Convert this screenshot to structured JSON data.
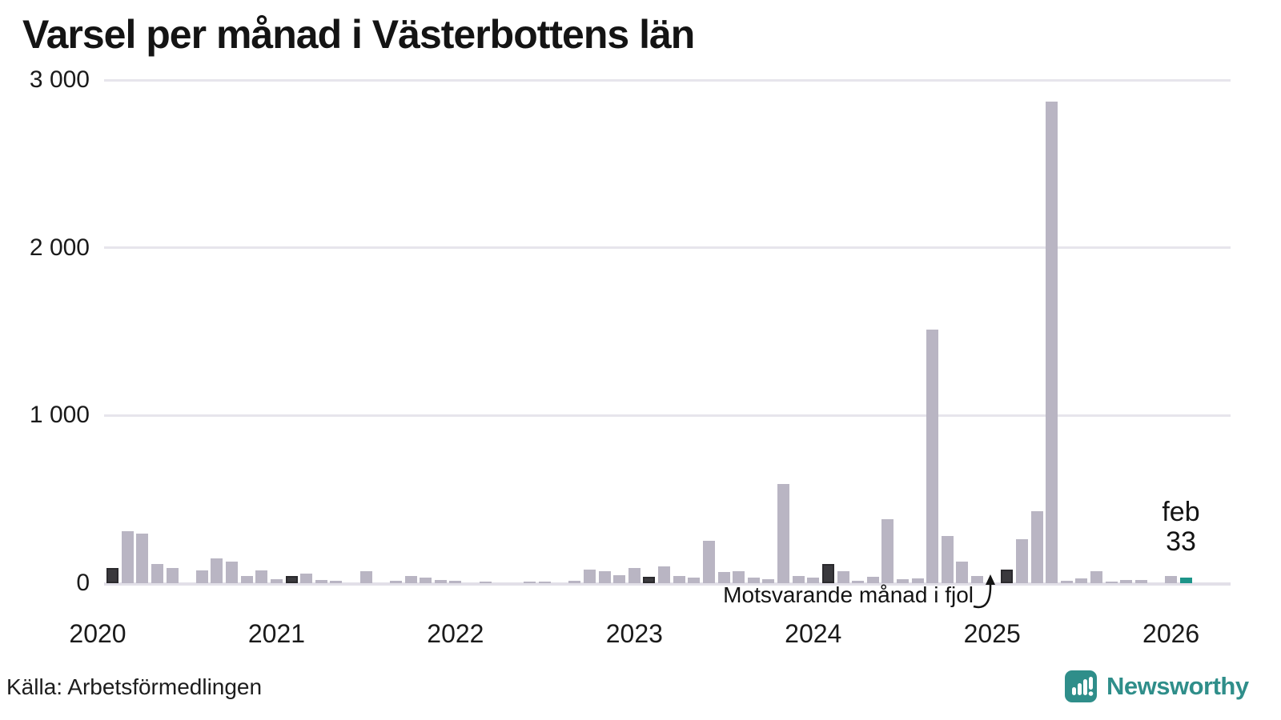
{
  "title": "Varsel per månad i Västerbottens län",
  "source": "Källa: Arbetsförmedlingen",
  "branding": {
    "name": "Newsworthy"
  },
  "annotation": {
    "compare_label": "Motsvarande månad i fjol"
  },
  "current_point": {
    "month_label": "feb",
    "value_label": "33"
  },
  "colors": {
    "bar": "#b9b5c3",
    "bar_compare": "#3a393d",
    "bar_current": "#1d9489",
    "brand_teal": "#2f8e8a",
    "grid": "#e7e5ec",
    "text": "#141414"
  },
  "chart_data": {
    "type": "bar",
    "title": "Varsel per månad i Västerbottens län",
    "xlabel": "",
    "ylabel": "",
    "ylim": [
      0,
      3000
    ],
    "grid": "horizontal",
    "y_ticks": [
      {
        "label": "0",
        "value": 0
      },
      {
        "label": "1 000",
        "value": 1000
      },
      {
        "label": "2 000",
        "value": 2000
      },
      {
        "label": "3 000",
        "value": 3000
      }
    ],
    "x_years": [
      "2020",
      "2021",
      "2022",
      "2023",
      "2024",
      "2025",
      "2026"
    ],
    "legend_note": "dark bars = same month previous years (feb); teal bar = current month",
    "months": [
      {
        "label": "jan 2020",
        "value": 0,
        "kind": "normal"
      },
      {
        "label": "feb 2020",
        "value": 90,
        "kind": "fjol"
      },
      {
        "label": "mar 2020",
        "value": 310,
        "kind": "normal"
      },
      {
        "label": "apr 2020",
        "value": 295,
        "kind": "normal"
      },
      {
        "label": "maj 2020",
        "value": 115,
        "kind": "normal"
      },
      {
        "label": "jun 2020",
        "value": 90,
        "kind": "normal"
      },
      {
        "label": "jul 2020",
        "value": 0,
        "kind": "normal"
      },
      {
        "label": "aug 2020",
        "value": 75,
        "kind": "normal"
      },
      {
        "label": "sep 2020",
        "value": 150,
        "kind": "normal"
      },
      {
        "label": "okt 2020",
        "value": 130,
        "kind": "normal"
      },
      {
        "label": "nov 2020",
        "value": 45,
        "kind": "normal"
      },
      {
        "label": "dec 2020",
        "value": 75,
        "kind": "normal"
      },
      {
        "label": "jan 2021",
        "value": 25,
        "kind": "normal"
      },
      {
        "label": "feb 2021",
        "value": 45,
        "kind": "fjol"
      },
      {
        "label": "mar 2021",
        "value": 55,
        "kind": "normal"
      },
      {
        "label": "apr 2021",
        "value": 20,
        "kind": "normal"
      },
      {
        "label": "maj 2021",
        "value": 15,
        "kind": "normal"
      },
      {
        "label": "jun 2021",
        "value": 0,
        "kind": "normal"
      },
      {
        "label": "jul 2021",
        "value": 70,
        "kind": "normal"
      },
      {
        "label": "aug 2021",
        "value": 0,
        "kind": "normal"
      },
      {
        "label": "sep 2021",
        "value": 12,
        "kind": "normal"
      },
      {
        "label": "okt 2021",
        "value": 45,
        "kind": "normal"
      },
      {
        "label": "nov 2021",
        "value": 35,
        "kind": "normal"
      },
      {
        "label": "dec 2021",
        "value": 20,
        "kind": "normal"
      },
      {
        "label": "jan 2022",
        "value": 12,
        "kind": "normal"
      },
      {
        "label": "feb 2022",
        "value": 0,
        "kind": "fjol"
      },
      {
        "label": "mar 2022",
        "value": 10,
        "kind": "normal"
      },
      {
        "label": "apr 2022",
        "value": 0,
        "kind": "normal"
      },
      {
        "label": "maj 2022",
        "value": 0,
        "kind": "normal"
      },
      {
        "label": "jun 2022",
        "value": 10,
        "kind": "normal"
      },
      {
        "label": "jul 2022",
        "value": 10,
        "kind": "normal"
      },
      {
        "label": "aug 2022",
        "value": 0,
        "kind": "normal"
      },
      {
        "label": "sep 2022",
        "value": 12,
        "kind": "normal"
      },
      {
        "label": "okt 2022",
        "value": 80,
        "kind": "normal"
      },
      {
        "label": "nov 2022",
        "value": 70,
        "kind": "normal"
      },
      {
        "label": "dec 2022",
        "value": 50,
        "kind": "normal"
      },
      {
        "label": "jan 2023",
        "value": 90,
        "kind": "normal"
      },
      {
        "label": "feb 2023",
        "value": 40,
        "kind": "fjol"
      },
      {
        "label": "mar 2023",
        "value": 100,
        "kind": "normal"
      },
      {
        "label": "apr 2023",
        "value": 42,
        "kind": "normal"
      },
      {
        "label": "maj 2023",
        "value": 35,
        "kind": "normal"
      },
      {
        "label": "jun 2023",
        "value": 255,
        "kind": "normal"
      },
      {
        "label": "jul 2023",
        "value": 65,
        "kind": "normal"
      },
      {
        "label": "aug 2023",
        "value": 70,
        "kind": "normal"
      },
      {
        "label": "sep 2023",
        "value": 35,
        "kind": "normal"
      },
      {
        "label": "okt 2023",
        "value": 25,
        "kind": "normal"
      },
      {
        "label": "nov 2023",
        "value": 590,
        "kind": "normal"
      },
      {
        "label": "dec 2023",
        "value": 45,
        "kind": "normal"
      },
      {
        "label": "jan 2024",
        "value": 35,
        "kind": "normal"
      },
      {
        "label": "feb 2024",
        "value": 115,
        "kind": "fjol"
      },
      {
        "label": "mar 2024",
        "value": 70,
        "kind": "normal"
      },
      {
        "label": "apr 2024",
        "value": 13,
        "kind": "normal"
      },
      {
        "label": "maj 2024",
        "value": 40,
        "kind": "normal"
      },
      {
        "label": "jun 2024",
        "value": 380,
        "kind": "normal"
      },
      {
        "label": "jul 2024",
        "value": 25,
        "kind": "normal"
      },
      {
        "label": "aug 2024",
        "value": 30,
        "kind": "normal"
      },
      {
        "label": "sep 2024",
        "value": 1510,
        "kind": "normal"
      },
      {
        "label": "okt 2024",
        "value": 280,
        "kind": "normal"
      },
      {
        "label": "nov 2024",
        "value": 130,
        "kind": "normal"
      },
      {
        "label": "dec 2024",
        "value": 45,
        "kind": "normal"
      },
      {
        "label": "jan 2025",
        "value": 0,
        "kind": "normal"
      },
      {
        "label": "feb 2025",
        "value": 80,
        "kind": "fjol"
      },
      {
        "label": "mar 2025",
        "value": 260,
        "kind": "normal"
      },
      {
        "label": "apr 2025",
        "value": 430,
        "kind": "normal"
      },
      {
        "label": "maj 2025",
        "value": 2870,
        "kind": "normal"
      },
      {
        "label": "jun 2025",
        "value": 15,
        "kind": "normal"
      },
      {
        "label": "jul 2025",
        "value": 30,
        "kind": "normal"
      },
      {
        "label": "aug 2025",
        "value": 70,
        "kind": "normal"
      },
      {
        "label": "sep 2025",
        "value": 10,
        "kind": "normal"
      },
      {
        "label": "okt 2025",
        "value": 20,
        "kind": "normal"
      },
      {
        "label": "nov 2025",
        "value": 20,
        "kind": "normal"
      },
      {
        "label": "dec 2025",
        "value": 0,
        "kind": "normal"
      },
      {
        "label": "jan 2026",
        "value": 45,
        "kind": "normal"
      },
      {
        "label": "feb 2026",
        "value": 33,
        "kind": "current"
      }
    ]
  }
}
